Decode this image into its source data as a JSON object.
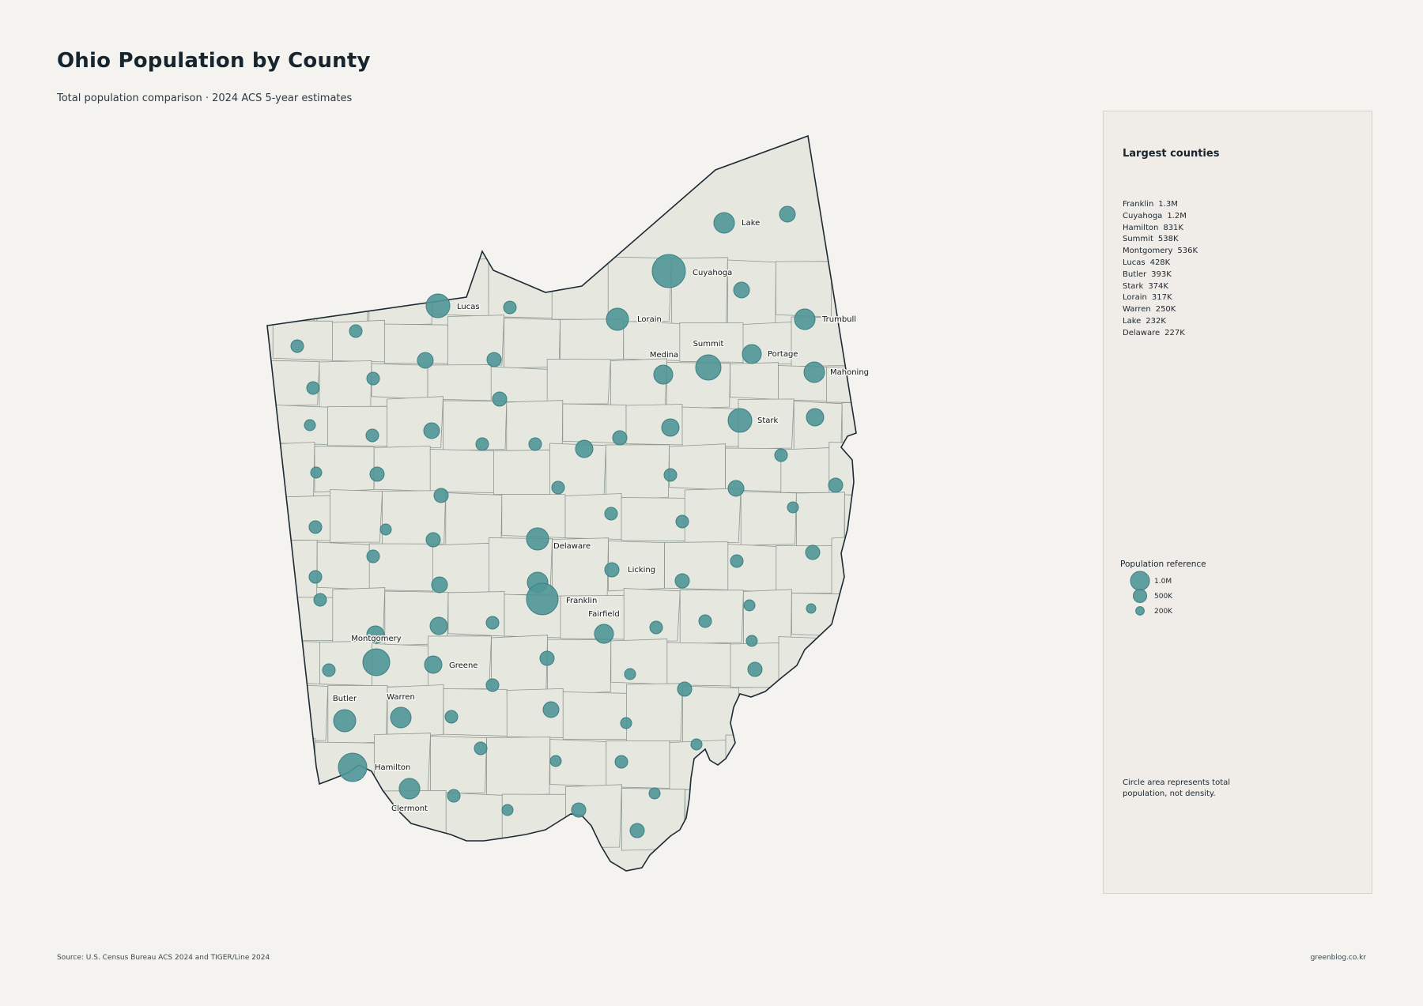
{
  "title": "Ohio Population by County",
  "subtitle": "Total population comparison · 2024 ACS 5-year estimates",
  "colors": {
    "background": "#f5f3ef",
    "county_fill": "#e6e8e0",
    "bubble": "#4f9698",
    "panel": "#f0ede8"
  },
  "panel": {
    "heading": "Largest counties",
    "largest": [
      {
        "name": "Franklin",
        "value": "1.3M"
      },
      {
        "name": "Cuyahoga",
        "value": "1.2M"
      },
      {
        "name": "Hamilton",
        "value": "831K"
      },
      {
        "name": "Summit",
        "value": "538K"
      },
      {
        "name": "Montgomery",
        "value": "536K"
      },
      {
        "name": "Lucas",
        "value": "428K"
      },
      {
        "name": "Butler",
        "value": "393K"
      },
      {
        "name": "Stark",
        "value": "374K"
      },
      {
        "name": "Lorain",
        "value": "317K"
      },
      {
        "name": "Warren",
        "value": "250K"
      },
      {
        "name": "Lake",
        "value": "232K"
      },
      {
        "name": "Delaware",
        "value": "227K"
      }
    ],
    "reference_title": "Population reference",
    "reference": [
      {
        "label": "1.0M",
        "population": 1000000
      },
      {
        "label": "500K",
        "population": 500000
      },
      {
        "label": "200K",
        "population": 200000
      }
    ],
    "note": "Circle area represents total population, not density."
  },
  "map_labels": [
    "Lucas",
    "Cuyahoga",
    "Lake",
    "Lorain",
    "Trumbull",
    "Summit",
    "Medina",
    "Portage",
    "Mahoning",
    "Stark",
    "Delaware",
    "Licking",
    "Franklin",
    "Fairfield",
    "Montgomery",
    "Greene",
    "Butler",
    "Warren",
    "Hamilton",
    "Clermont"
  ],
  "source": "Source: U.S. Census Bureau ACS 2024 and TIGER/Line 2024",
  "credit": "greenblog.co.kr"
}
